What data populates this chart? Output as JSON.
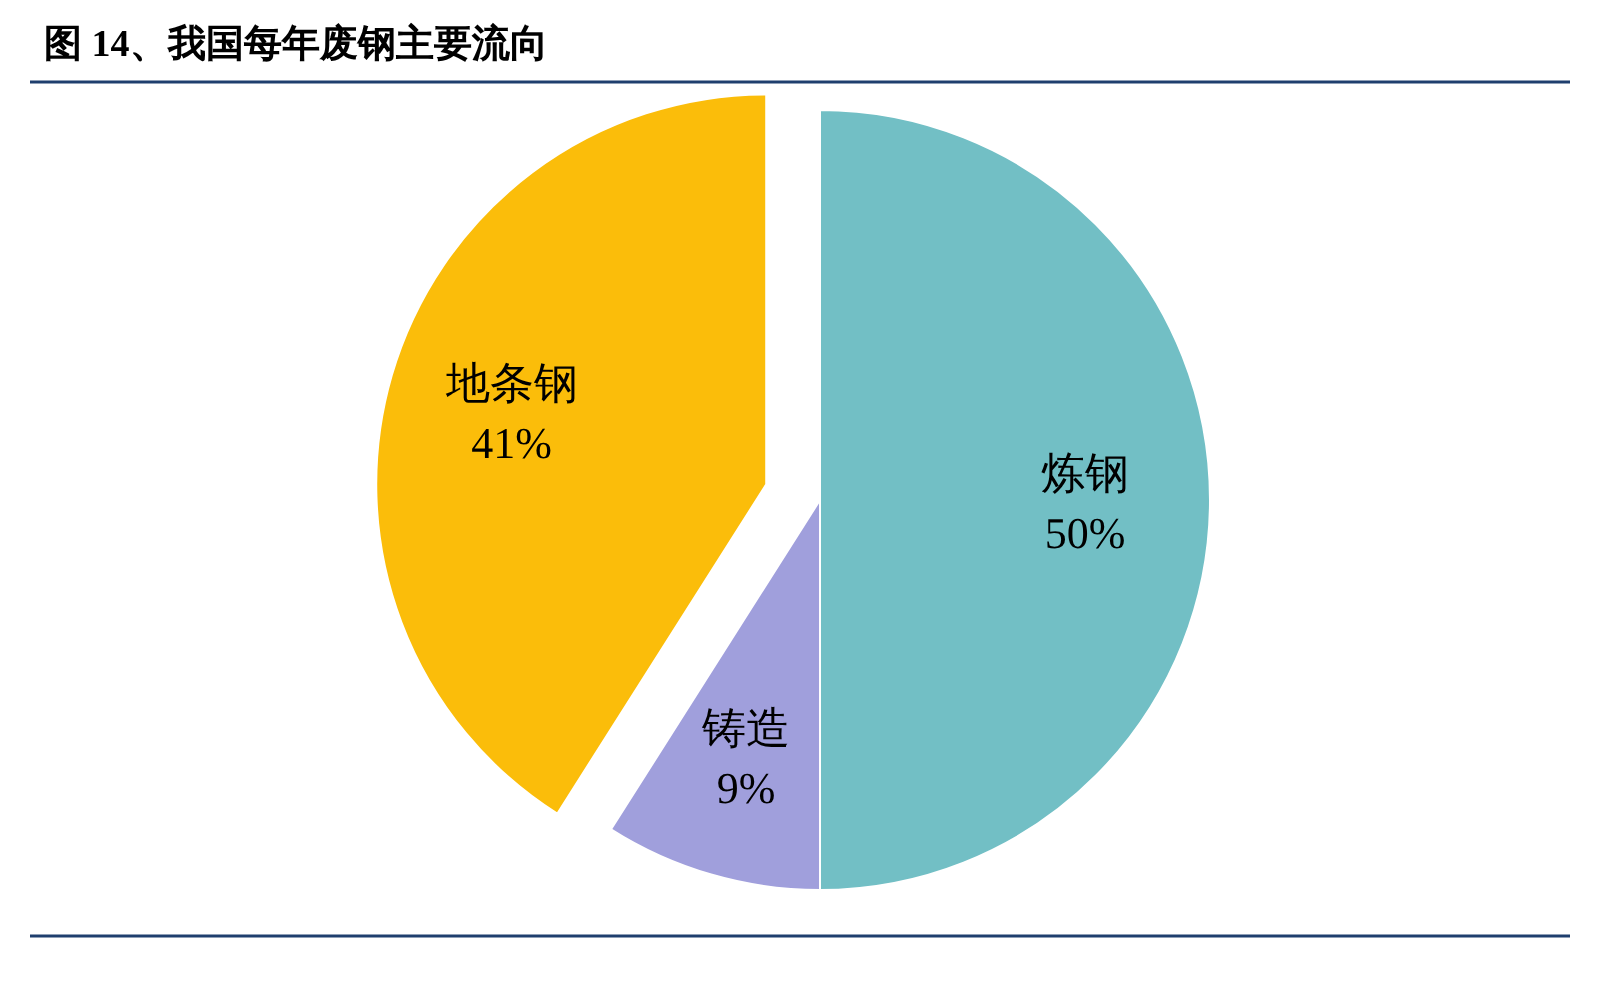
{
  "chart_data": {
    "type": "pie",
    "title": "图 14、我国每年废钢主要流向",
    "categories": [
      "炼钢",
      "铸造",
      "地条钢"
    ],
    "values": [
      50,
      9,
      41
    ],
    "value_labels": [
      "50%",
      "9%",
      "41%"
    ],
    "colors": [
      "#72bfc5",
      "#a09fdc",
      "#fbbd0a"
    ]
  }
}
